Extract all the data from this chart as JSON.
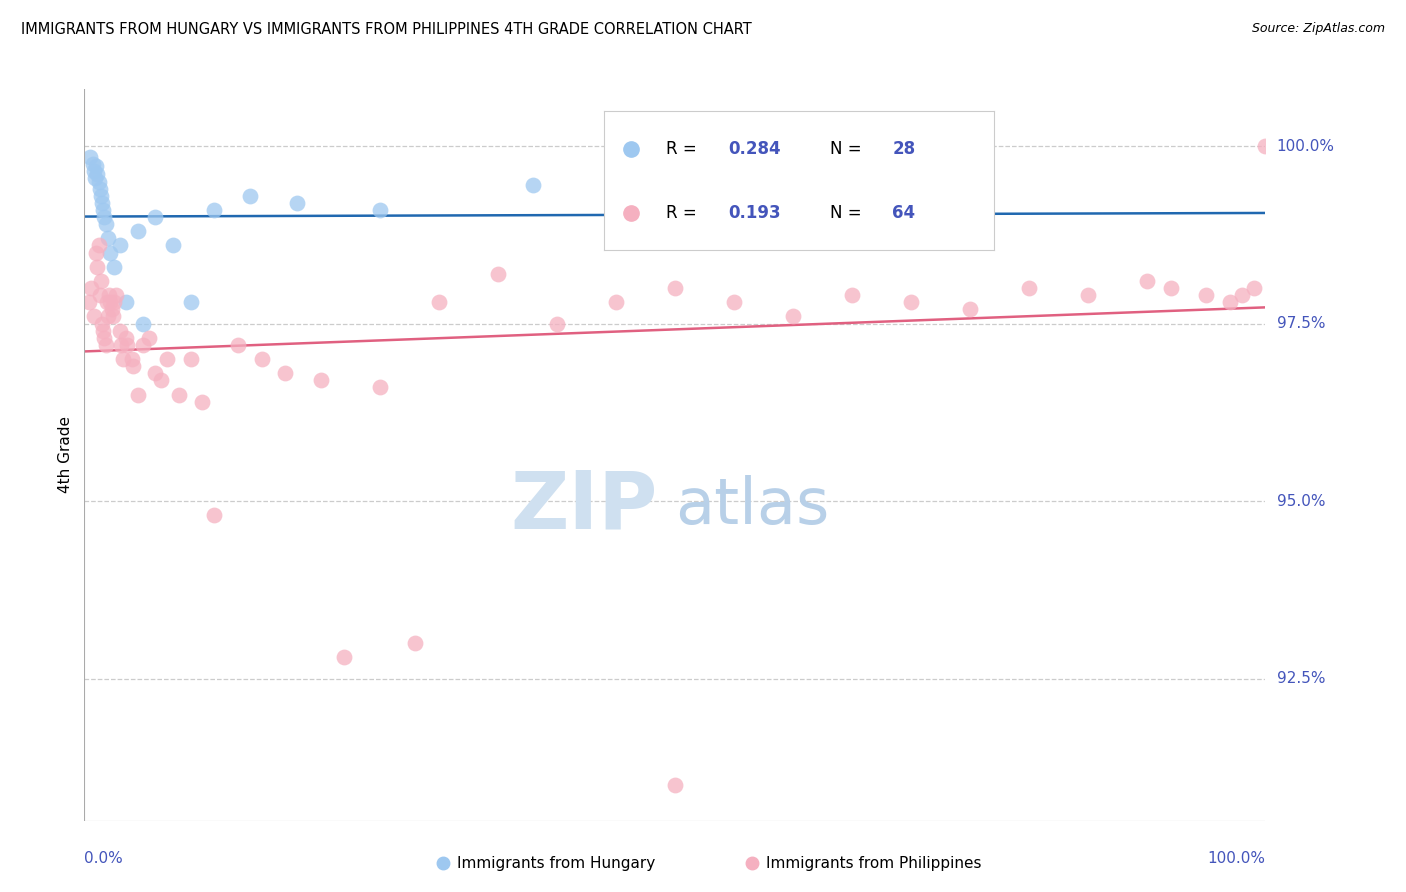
{
  "title": "IMMIGRANTS FROM HUNGARY VS IMMIGRANTS FROM PHILIPPINES 4TH GRADE CORRELATION CHART",
  "source": "Source: ZipAtlas.com",
  "ylabel": "4th Grade",
  "y_tick_values": [
    92.5,
    95.0,
    97.5,
    100.0
  ],
  "y_min": 90.5,
  "y_max": 100.8,
  "x_min": 0.0,
  "x_max": 100.0,
  "hungary_R": 0.284,
  "hungary_N": 28,
  "philippines_R": 0.193,
  "philippines_N": 64,
  "hungary_fill": "#9ec8f0",
  "hungary_line": "#2068b0",
  "philippines_fill": "#f5b0c0",
  "philippines_line": "#e06080",
  "grid_color": "#cccccc",
  "axis_label_color": "#4455bb",
  "watermark_zip_color": "#cfe0f0",
  "watermark_atlas_color": "#b8d0e8",
  "background": "#ffffff",
  "hungary_x": [
    0.5,
    0.7,
    0.8,
    0.9,
    1.0,
    1.1,
    1.2,
    1.3,
    1.4,
    1.5,
    1.6,
    1.7,
    1.8,
    2.0,
    2.2,
    2.5,
    3.0,
    3.5,
    4.5,
    5.0,
    6.0,
    7.5,
    9.0,
    11.0,
    14.0,
    18.0,
    25.0,
    38.0
  ],
  "hungary_y": [
    99.85,
    99.75,
    99.65,
    99.55,
    99.72,
    99.6,
    99.5,
    99.4,
    99.3,
    99.2,
    99.1,
    99.0,
    98.9,
    98.7,
    98.5,
    98.3,
    98.6,
    97.8,
    98.8,
    97.5,
    99.0,
    98.6,
    97.8,
    99.1,
    99.3,
    99.2,
    99.1,
    99.45
  ],
  "philippines_x": [
    0.4,
    0.6,
    0.8,
    1.0,
    1.1,
    1.2,
    1.3,
    1.4,
    1.5,
    1.6,
    1.7,
    1.8,
    1.9,
    2.0,
    2.1,
    2.2,
    2.3,
    2.4,
    2.5,
    2.7,
    3.0,
    3.1,
    3.3,
    3.5,
    3.6,
    4.0,
    4.1,
    4.5,
    5.0,
    5.5,
    6.0,
    6.5,
    7.0,
    8.0,
    9.0,
    10.0,
    11.0,
    13.0,
    15.0,
    17.0,
    20.0,
    22.0,
    25.0,
    28.0,
    30.0,
    35.0,
    40.0,
    45.0,
    50.0,
    55.0,
    60.0,
    65.0,
    70.0,
    75.0,
    80.0,
    85.0,
    90.0,
    92.0,
    95.0,
    97.0,
    98.0,
    99.0,
    100.0,
    50.0
  ],
  "philippines_y": [
    97.8,
    98.0,
    97.6,
    98.5,
    98.3,
    98.6,
    97.9,
    98.1,
    97.5,
    97.4,
    97.3,
    97.2,
    97.8,
    97.6,
    97.9,
    97.8,
    97.7,
    97.6,
    97.8,
    97.9,
    97.4,
    97.2,
    97.0,
    97.3,
    97.2,
    97.0,
    96.9,
    96.5,
    97.2,
    97.3,
    96.8,
    96.7,
    97.0,
    96.5,
    97.0,
    96.4,
    94.8,
    97.2,
    97.0,
    96.8,
    96.7,
    92.8,
    96.6,
    93.0,
    97.8,
    98.2,
    97.5,
    97.8,
    98.0,
    97.8,
    97.6,
    97.9,
    97.8,
    97.7,
    98.0,
    97.9,
    98.1,
    98.0,
    97.9,
    97.8,
    97.9,
    98.0,
    100.0,
    91.0
  ]
}
